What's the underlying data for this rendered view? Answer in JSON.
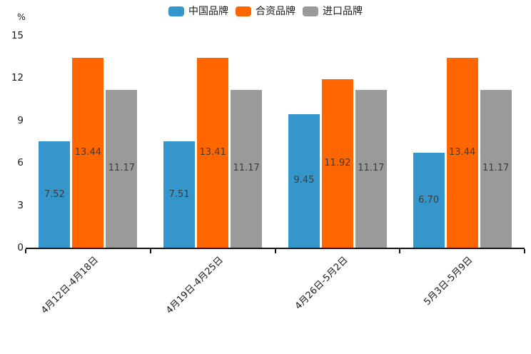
{
  "chart_data": {
    "type": "bar",
    "title": "",
    "categories": [
      "4月12日-4月18日",
      "4月19日-4月25日",
      "4月26日-5月2日",
      "5月3日-5月9日"
    ],
    "series": [
      {
        "name": "中国品牌",
        "color": "#3496cb",
        "values": [
          7.52,
          7.51,
          9.45,
          6.7
        ]
      },
      {
        "name": "合资品牌",
        "color": "#ff6600",
        "values": [
          13.44,
          13.41,
          11.92,
          13.44
        ]
      },
      {
        "name": "进口品牌",
        "color": "#9a9a9a",
        "values": [
          11.17,
          11.17,
          11.17,
          11.17
        ]
      }
    ],
    "value_label_format": "2-decimals",
    "xlabel": "",
    "ylabel": "%",
    "ylim": [
      0,
      15
    ],
    "yticks": [
      0,
      3,
      6,
      9,
      12,
      15
    ],
    "grid": false,
    "legend_position": "top",
    "colors": {
      "axis": "#141414",
      "tick_text": "#1a1a1a",
      "value_text": "#3d3d3d",
      "background": "#ffffff"
    }
  }
}
